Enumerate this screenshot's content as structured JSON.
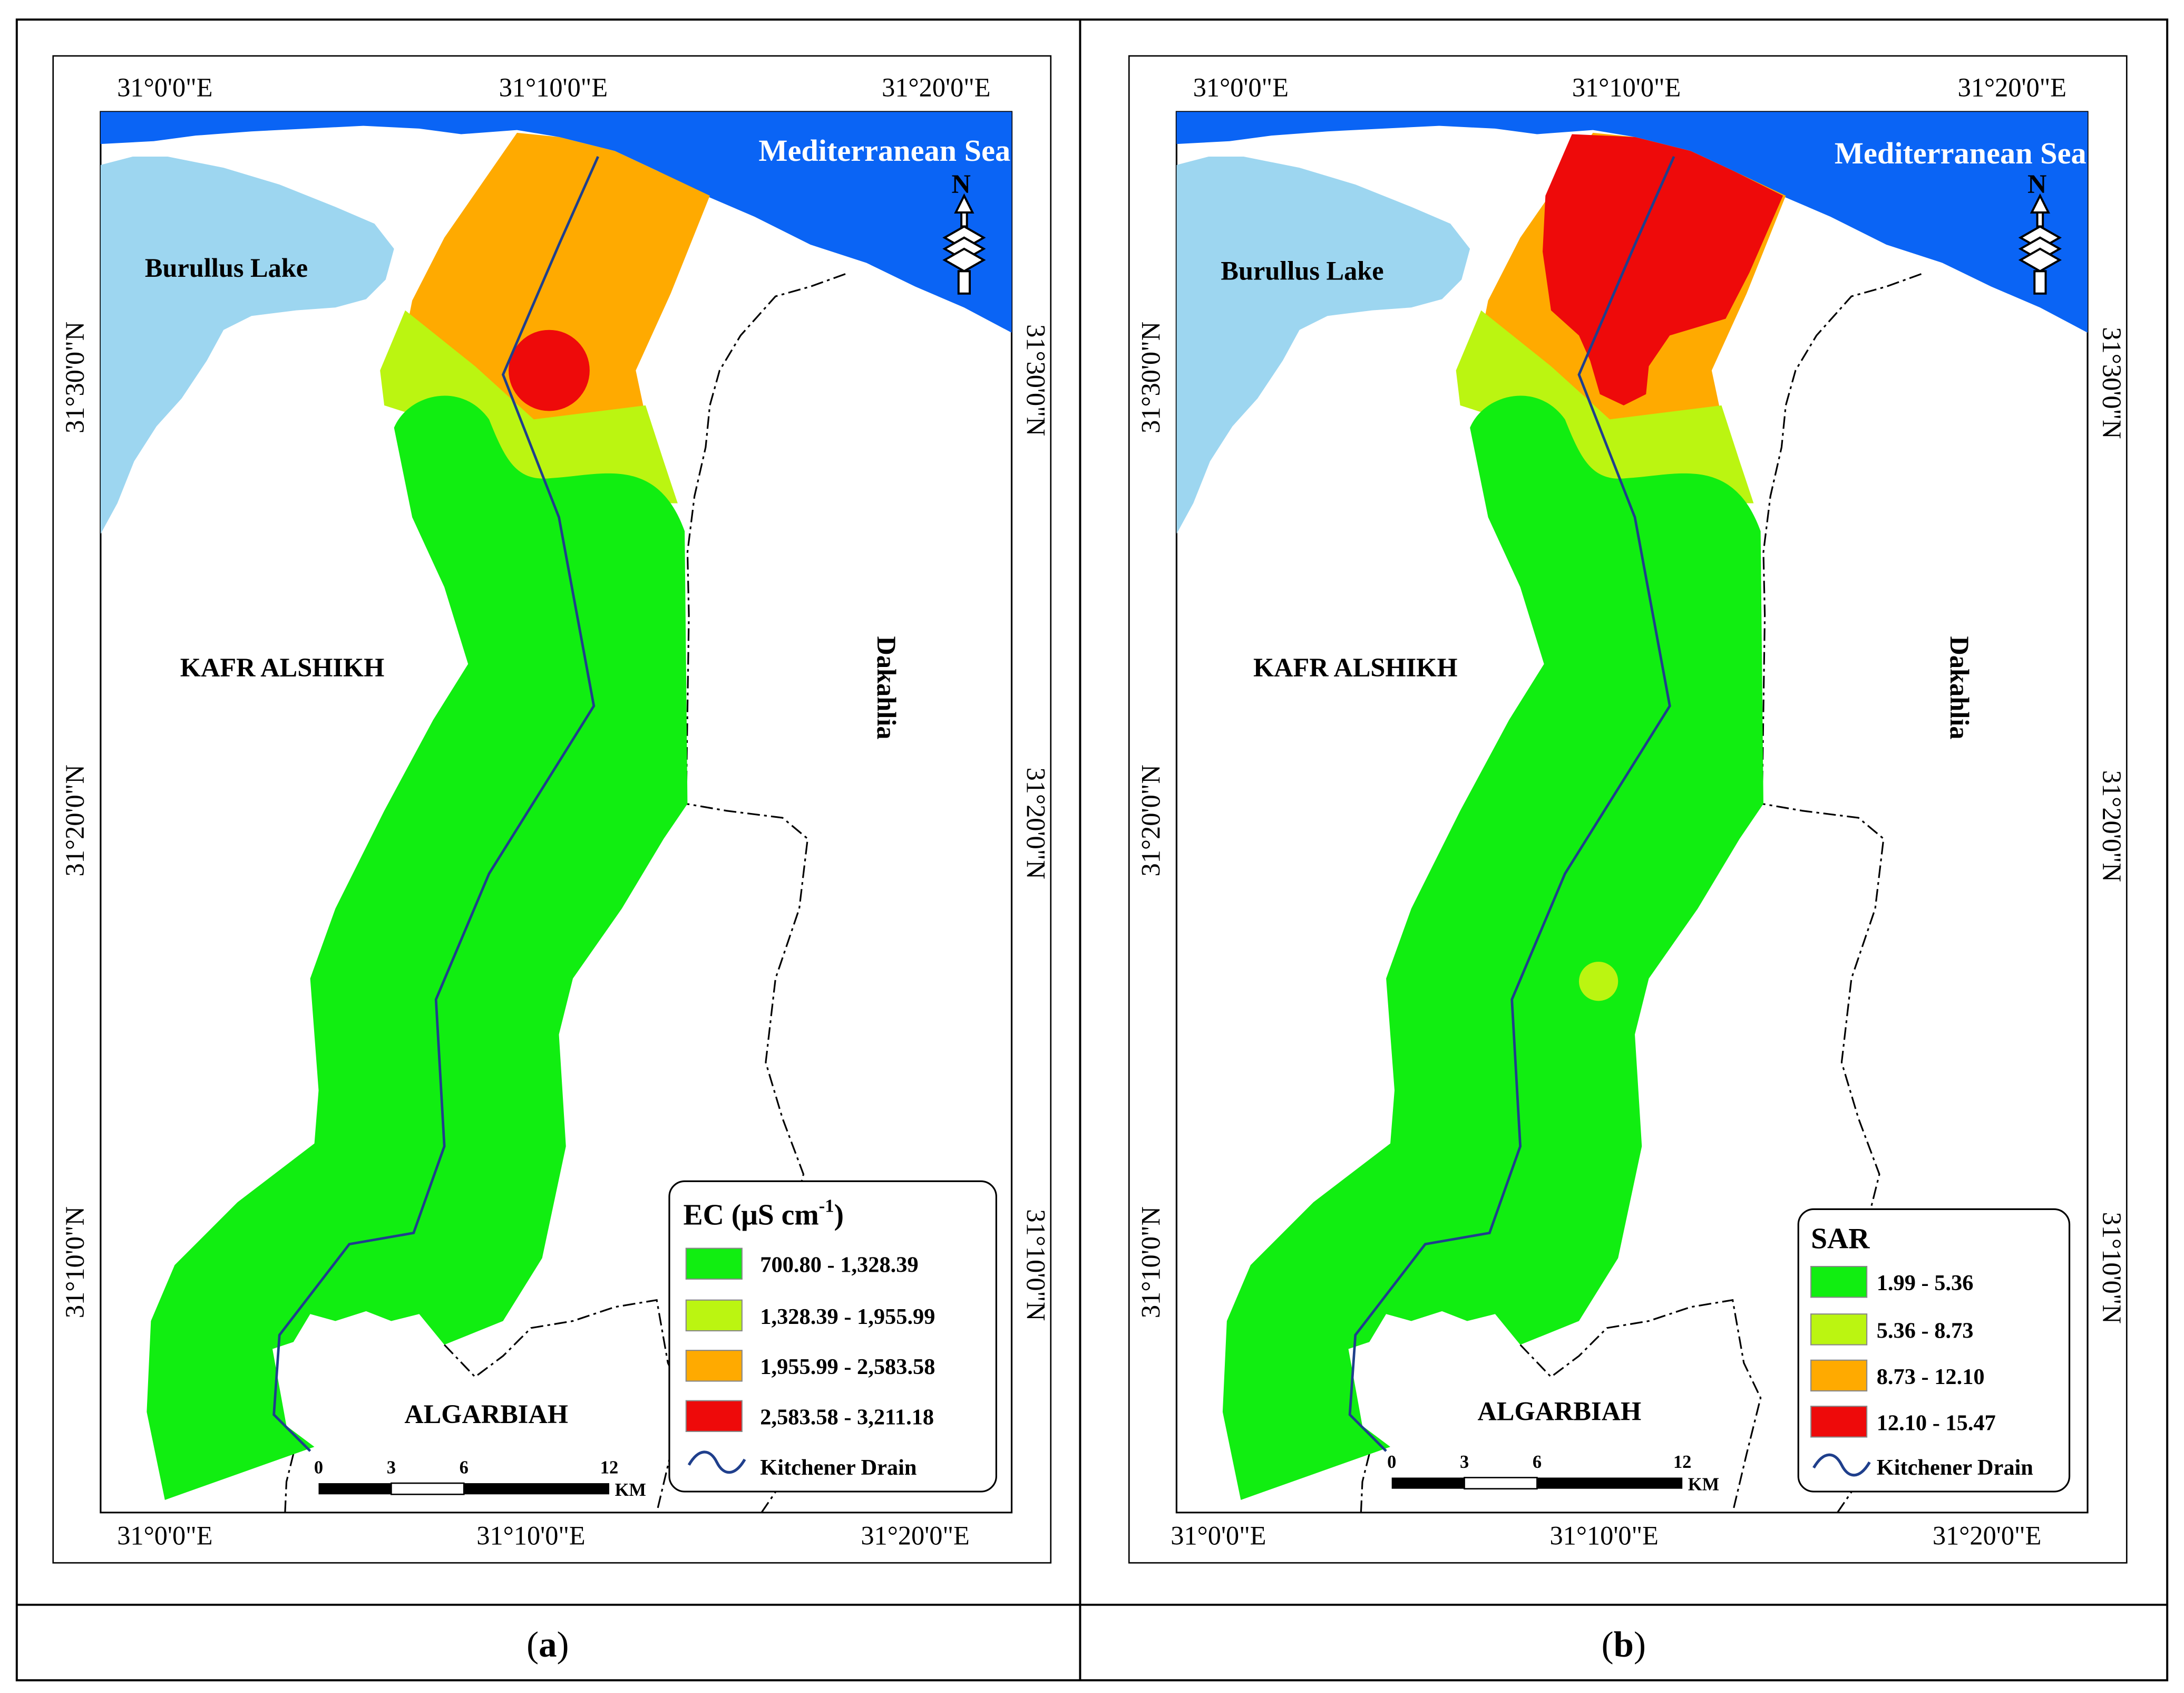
{
  "panels": [
    {
      "id": "a",
      "caption_letter": "a",
      "longitudes": [
        "31°0'0\"E",
        "31°10'0\"E",
        "31°20'0\"E"
      ],
      "latitudes": [
        "31°30'0\"N",
        "31°20'0\"N",
        "31°10'0\"N"
      ],
      "labels": {
        "sea": "Mediterranean Sea",
        "lake": "Burullus Lake",
        "west": "KAFR ALSHIKH",
        "east": "Dakahlia",
        "south": "ALGARBIAH"
      },
      "legend": {
        "title_main": "EC (μS cm",
        "title_sup": "-1",
        "title_end": ")",
        "classes": [
          {
            "range": "700.80 - 1,328.39",
            "color": "#11ee11"
          },
          {
            "range": "1,328.39 - 1,955.99",
            "color": "#bbf511"
          },
          {
            "range": "1,955.99 - 2,583.58",
            "color": "#ffaa00"
          },
          {
            "range": "2,583.58 - 3,211.18",
            "color": "#ee0a0a"
          }
        ],
        "drain_label": "Kitchener Drain"
      },
      "scale_bar": {
        "ticks": [
          "0",
          "3",
          "6",
          "12"
        ],
        "unit": "KM"
      },
      "north_arrow": "N"
    },
    {
      "id": "b",
      "caption_letter": "b",
      "longitudes": [
        "31°0'0\"E",
        "31°10'0\"E",
        "31°20'0\"E"
      ],
      "latitudes": [
        "31°30'0\"N",
        "31°20'0\"N",
        "31°10'0\"N"
      ],
      "labels": {
        "sea": "Mediterranean Sea",
        "lake": "Burullus Lake",
        "west": "KAFR ALSHIKH",
        "east": "Dakahlia",
        "south": "ALGARBIAH"
      },
      "legend": {
        "title_main": "SAR",
        "title_sup": "",
        "title_end": "",
        "classes": [
          {
            "range": "1.99 - 5.36",
            "color": "#11ee11"
          },
          {
            "range": "5.36 - 8.73",
            "color": "#bbf511"
          },
          {
            "range": "8.73 - 12.10",
            "color": "#ffaa00"
          },
          {
            "range": "12.10 - 15.47",
            "color": "#ee0a0a"
          }
        ],
        "drain_label": "Kitchener Drain"
      },
      "scale_bar": {
        "ticks": [
          "0",
          "3",
          "6",
          "12"
        ],
        "unit": "KM"
      },
      "north_arrow": "N"
    }
  ],
  "colors": {
    "sea": "#0a64f5",
    "lake": "#9dd6f0",
    "drain": "#1f3f8c",
    "border": "#000000"
  }
}
